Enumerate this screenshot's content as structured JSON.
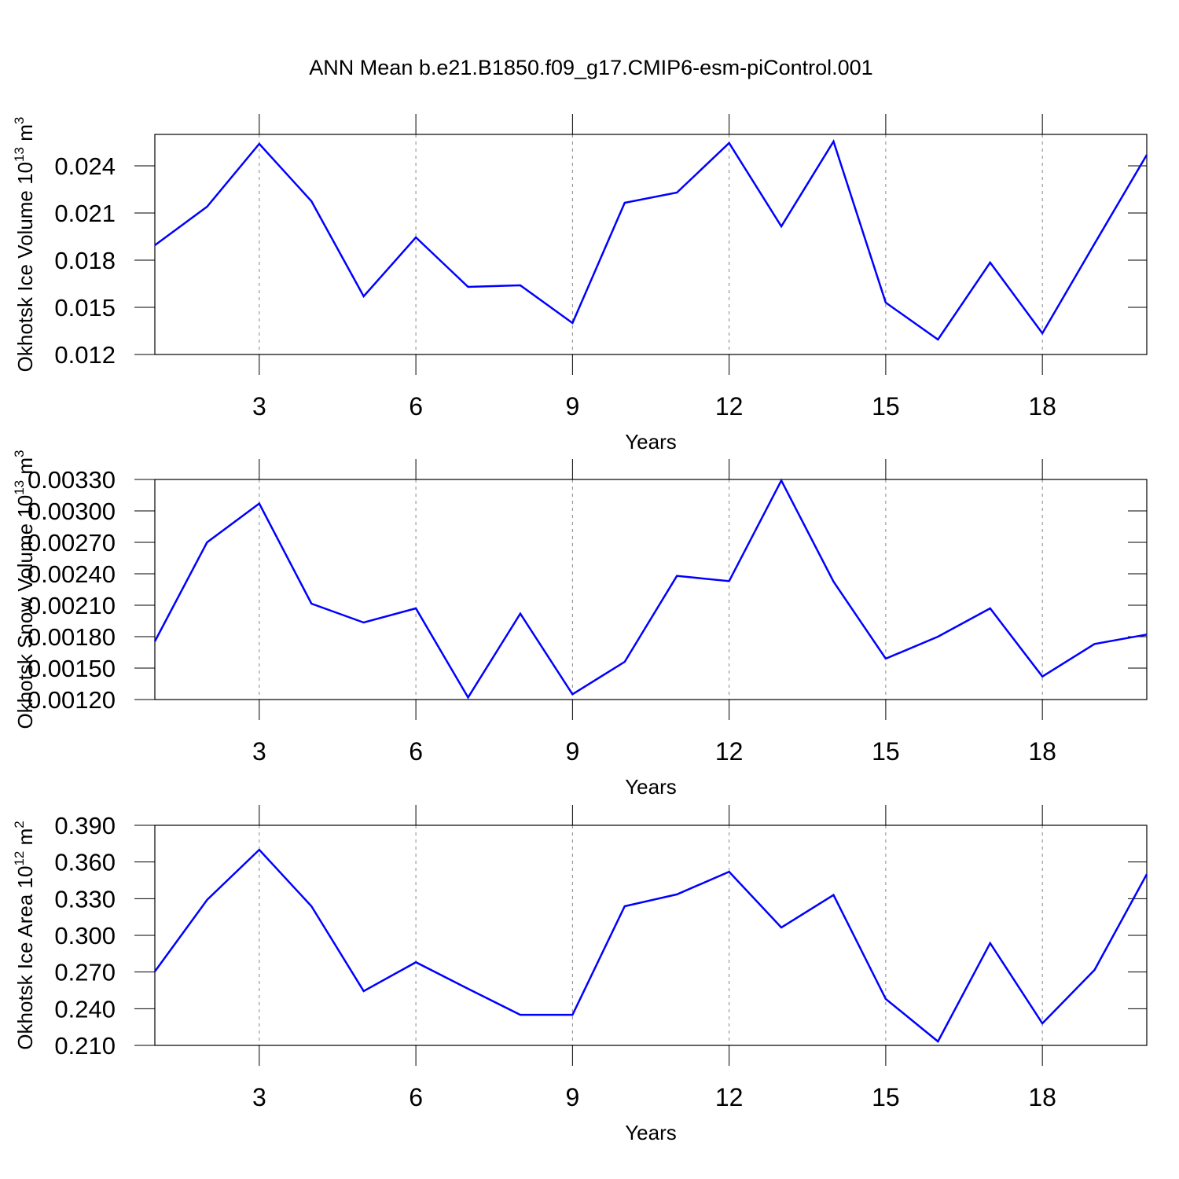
{
  "title": "ANN Mean b.e21.B1850.f09_g17.CMIP6-esm-piControl.001",
  "chart_data": [
    {
      "type": "line",
      "ylabel": [
        "Okhotsk Ice Volume 10",
        "13",
        " m",
        "3"
      ],
      "xlabel": "Years",
      "x": [
        1,
        2,
        3,
        4,
        5,
        6,
        7,
        8,
        9,
        10,
        11,
        12,
        13,
        14,
        15,
        16,
        17,
        18,
        19,
        20
      ],
      "series": [
        {
          "color": "#0000ff",
          "values": [
            0.01895,
            0.0214,
            0.0254,
            0.02175,
            0.0157,
            0.01945,
            0.0163,
            0.0164,
            0.014,
            0.02165,
            0.0223,
            0.02545,
            0.02015,
            0.02555,
            0.0153,
            0.01295,
            0.01785,
            0.01335,
            0.01905,
            0.0247
          ]
        }
      ],
      "xlim": [
        1,
        20
      ],
      "xticks": [
        3,
        6,
        9,
        12,
        15,
        18
      ],
      "ylim": [
        0.012,
        0.026
      ],
      "yticks": [
        0.012,
        0.015,
        0.018,
        0.021,
        0.024
      ],
      "grid": "x"
    },
    {
      "type": "line",
      "ylabel": [
        "Okhotsk Snow Volume 10",
        "13",
        " m",
        "3"
      ],
      "xlabel": "Years",
      "x": [
        1,
        2,
        3,
        4,
        5,
        6,
        7,
        8,
        9,
        10,
        11,
        12,
        13,
        14,
        15,
        16,
        17,
        18,
        19,
        20
      ],
      "series": [
        {
          "color": "#0000ff",
          "values": [
            0.001755,
            0.0027,
            0.00307,
            0.002115,
            0.001935,
            0.00207,
            0.00122,
            0.00202,
            0.00125,
            0.00156,
            0.00238,
            0.00233,
            0.00329,
            0.002325,
            0.00159,
            0.0018,
            0.00207,
            0.00142,
            0.00173,
            0.00182
          ]
        }
      ],
      "xlim": [
        1,
        20
      ],
      "xticks": [
        3,
        6,
        9,
        12,
        15,
        18
      ],
      "ylim": [
        0.0012,
        0.0033
      ],
      "yticks": [
        {
          "value": 0.0012,
          "label": "0.00120"
        },
        {
          "value": 0.0015,
          "label": "0.00150"
        },
        {
          "value": 0.0018,
          "label": "0.00180"
        },
        {
          "value": 0.0021,
          "label": "0.00210"
        },
        {
          "value": 0.0024,
          "label": "0.00240"
        },
        {
          "value": 0.0027,
          "label": "0.00270"
        },
        {
          "value": 0.003,
          "label": "0.00300"
        },
        {
          "value": 0.0033,
          "label": "0.00330"
        }
      ],
      "grid": "x"
    },
    {
      "type": "line",
      "ylabel": [
        "Okhotsk Ice Area 10",
        "12",
        " m",
        "2"
      ],
      "xlabel": "Years",
      "x": [
        1,
        2,
        3,
        4,
        5,
        6,
        7,
        8,
        9,
        10,
        11,
        12,
        13,
        14,
        15,
        16,
        17,
        18,
        19,
        20
      ],
      "series": [
        {
          "color": "#0000ff",
          "values": [
            0.2704,
            0.329,
            0.37,
            0.3238,
            0.2544,
            0.278,
            0.2563,
            0.235,
            0.235,
            0.3238,
            0.3335,
            0.352,
            0.3064,
            0.333,
            0.248,
            0.2132,
            0.2936,
            0.228,
            0.2717,
            0.35
          ]
        }
      ],
      "xlim": [
        1,
        20
      ],
      "xticks": [
        3,
        6,
        9,
        12,
        15,
        18
      ],
      "ylim": [
        0.21,
        0.39
      ],
      "yticks": [
        {
          "value": 0.21,
          "label": "0.210"
        },
        {
          "value": 0.24,
          "label": "0.240"
        },
        {
          "value": 0.27,
          "label": "0.270"
        },
        {
          "value": 0.3,
          "label": "0.300"
        },
        {
          "value": 0.33,
          "label": "0.330"
        },
        {
          "value": 0.36,
          "label": "0.360"
        },
        {
          "value": 0.39,
          "label": "0.390"
        }
      ],
      "grid": "x"
    }
  ]
}
